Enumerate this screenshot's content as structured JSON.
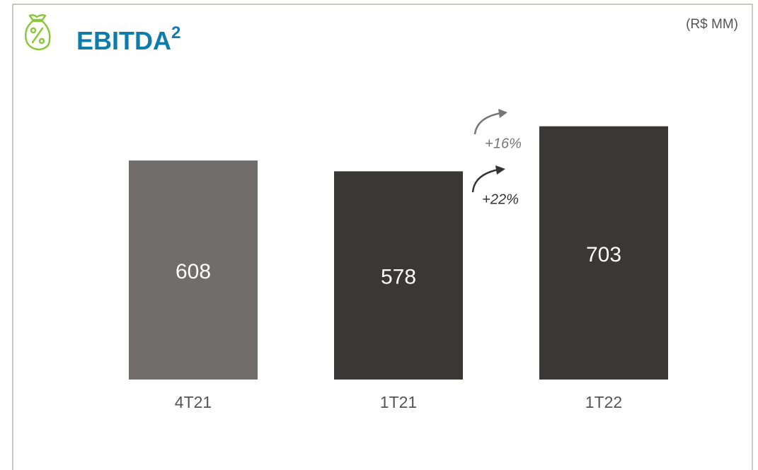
{
  "chart_data": {
    "type": "bar",
    "title": "EBITDA",
    "title_superscript": "2",
    "unit": "(R$ MM)",
    "categories": [
      "4T21",
      "1T21",
      "1T22"
    ],
    "values": [
      608,
      578,
      703
    ],
    "colors": [
      "#716d6b",
      "#3a3836",
      "#3a3836"
    ],
    "ylim": [
      0,
      720
    ],
    "annotations": [
      "+16%",
      "+22%"
    ]
  }
}
